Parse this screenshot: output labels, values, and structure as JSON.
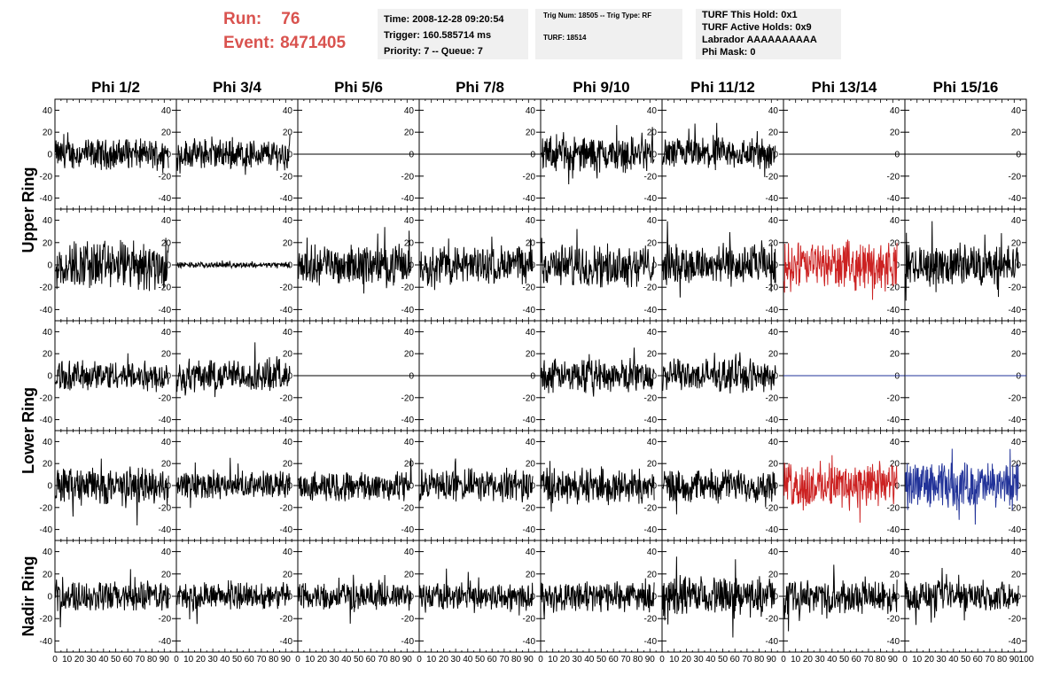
{
  "header": {
    "run_label": "Run:",
    "run_value": "76",
    "event_label": "Event:",
    "event_value": "8471405",
    "time_line": "Time: 2008-12-28 09:20:54",
    "trigger_line": "Trigger: 160.585714 ms",
    "priority_line": "Priority: 7 -- Queue: 7",
    "trig_line": "Trig Num: 18505 -- Trig Type: RF",
    "turf_line": "TURF: 18514",
    "turf_hold": "TURF This Hold: 0x1",
    "turf_active": "TURF Active Holds: 0x9",
    "labrador": "Labrador AAAAAAAAAA",
    "phi_mask": "Phi Mask: 0"
  },
  "chart_data": {
    "type": "line",
    "columns": [
      "Phi 1/2",
      "Phi 3/4",
      "Phi 5/6",
      "Phi 7/8",
      "Phi 9/10",
      "Phi 11/12",
      "Phi 13/14",
      "Phi 15/16"
    ],
    "row_groups": [
      {
        "label": "Upper Ring",
        "rows": [
          0,
          1
        ]
      },
      {
        "label": "Lower Ring",
        "rows": [
          2,
          3
        ]
      },
      {
        "label": "Nadir Ring",
        "rows": [
          4
        ]
      }
    ],
    "xlim": [
      0,
      100
    ],
    "ylim": [
      -50,
      50
    ],
    "y_ticks": [
      -40,
      -20,
      0,
      20,
      40
    ],
    "x_tick_labels": [
      "0",
      "10",
      "20",
      "30",
      "40",
      "50",
      "60",
      "70",
      "80",
      "90",
      "100"
    ],
    "grid": false,
    "colors": {
      "normal": "#000000",
      "red": "#cc2222",
      "blue": "#223399"
    },
    "panels": [
      [
        {
          "amp": 11,
          "color": "normal"
        },
        {
          "amp": 11,
          "color": "normal"
        },
        {
          "amp": 0,
          "color": "normal"
        },
        {
          "amp": 0,
          "color": "normal"
        },
        {
          "amp": 13,
          "color": "normal"
        },
        {
          "amp": 12,
          "color": "normal"
        },
        {
          "amp": 0,
          "color": "normal"
        },
        {
          "amp": 0,
          "color": "normal"
        }
      ],
      [
        {
          "amp": 18,
          "color": "normal"
        },
        {
          "amp": 2,
          "color": "normal"
        },
        {
          "amp": 14,
          "color": "normal"
        },
        {
          "amp": 14,
          "color": "normal"
        },
        {
          "amp": 15,
          "color": "normal"
        },
        {
          "amp": 15,
          "color": "normal"
        },
        {
          "amp": 17,
          "color": "red"
        },
        {
          "amp": 15,
          "color": "normal"
        }
      ],
      [
        {
          "amp": 11,
          "color": "normal"
        },
        {
          "amp": 12,
          "color": "normal"
        },
        {
          "amp": 0,
          "color": "normal"
        },
        {
          "amp": 0,
          "color": "normal"
        },
        {
          "amp": 12,
          "color": "normal"
        },
        {
          "amp": 12,
          "color": "normal"
        },
        {
          "amp": 0,
          "color": "blue"
        },
        {
          "amp": 0,
          "color": "blue"
        }
      ],
      [
        {
          "amp": 14,
          "color": "normal"
        },
        {
          "amp": 10,
          "color": "normal"
        },
        {
          "amp": 11,
          "color": "normal"
        },
        {
          "amp": 12,
          "color": "normal"
        },
        {
          "amp": 13,
          "color": "normal"
        },
        {
          "amp": 12,
          "color": "normal"
        },
        {
          "amp": 17,
          "color": "red"
        },
        {
          "amp": 17,
          "color": "blue"
        }
      ],
      [
        {
          "amp": 11,
          "color": "normal"
        },
        {
          "amp": 10,
          "color": "normal"
        },
        {
          "amp": 10,
          "color": "normal"
        },
        {
          "amp": 10,
          "color": "normal"
        },
        {
          "amp": 11,
          "color": "normal"
        },
        {
          "amp": 14,
          "color": "normal"
        },
        {
          "amp": 12,
          "color": "normal"
        },
        {
          "amp": 11,
          "color": "normal"
        }
      ]
    ]
  }
}
